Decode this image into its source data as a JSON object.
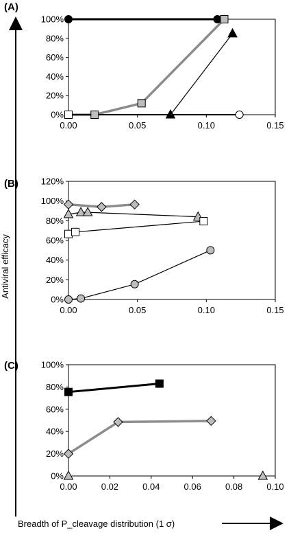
{
  "figure": {
    "shared_ylabel": "Antiviral efficacy",
    "shared_xlabel": "Breadth of P_cleavage distribution (1 σ)"
  },
  "chart_data": [
    {
      "panel_label": "(A)",
      "type": "line",
      "xlim": [
        0,
        0.15
      ],
      "ylim": [
        0,
        1.0
      ],
      "x_ticks": [
        "0.00",
        "0.05",
        "0.10",
        "0.15"
      ],
      "y_ticks": [
        "0%",
        "20%",
        "40%",
        "60%",
        "80%",
        "100%"
      ],
      "grid": false,
      "series": [
        {
          "points": [
            [
              0.0,
              1.0
            ],
            [
              0.108,
              1.0
            ]
          ],
          "marker": "circle",
          "marker_fill": "#000000",
          "line_color": "#000000",
          "line_width": 3
        },
        {
          "points": [
            [
              0.0,
              0.0
            ],
            [
              0.019,
              0.0
            ],
            [
              0.053,
              0.12
            ],
            [
              0.113,
              1.0
            ]
          ],
          "marker": "square",
          "marker_fill": "#bdbdbd",
          "line_color": "#8c8c8c",
          "line_width": 3.5
        },
        {
          "points": [
            [
              0.074,
              0.0
            ],
            [
              0.119,
              0.85
            ]
          ],
          "marker": "triangle",
          "marker_fill": "#000000",
          "line_color": "#000000",
          "line_width": 1.2
        },
        {
          "points": [
            [
              0.0,
              0.0
            ],
            [
              0.124,
              0.0
            ]
          ],
          "marker": "circle",
          "marker_fill": "#ffffff",
          "line_color": "#000000",
          "line_width": 2
        },
        {
          "points": [
            [
              0.0,
              0.0
            ]
          ],
          "marker": "square",
          "marker_fill": "#ffffff",
          "line_color": "#000000",
          "line_width": 0
        }
      ]
    },
    {
      "panel_label": "(B)",
      "type": "line",
      "xlim": [
        0,
        0.15
      ],
      "ylim": [
        0,
        1.2
      ],
      "x_ticks": [
        "0.00",
        "0.05",
        "0.10",
        "0.15"
      ],
      "y_ticks": [
        "0%",
        "20%",
        "40%",
        "60%",
        "80%",
        "100%",
        "120%"
      ],
      "grid": false,
      "series": [
        {
          "points": [
            [
              0.0,
              0.965
            ],
            [
              0.024,
              0.94
            ],
            [
              0.048,
              0.965
            ]
          ],
          "marker": "diamond",
          "marker_fill": "#bdbdbd",
          "line_color": "#8c8c8c",
          "line_width": 3.5
        },
        {
          "points": [
            [
              0.0,
              0.865
            ],
            [
              0.009,
              0.885
            ],
            [
              0.014,
              0.885
            ],
            [
              0.094,
              0.84
            ]
          ],
          "marker": "triangle",
          "marker_fill": "#bdbdbd",
          "line_color": "#000000",
          "line_width": 1.2
        },
        {
          "points": [
            [
              0.0,
              0.665
            ],
            [
              0.005,
              0.685
            ],
            [
              0.098,
              0.795
            ]
          ],
          "marker": "square",
          "marker_fill": "#ffffff",
          "line_color": "#000000",
          "line_width": 1.2
        },
        {
          "points": [
            [
              0.0,
              0.0
            ],
            [
              0.009,
              0.01
            ],
            [
              0.048,
              0.155
            ],
            [
              0.103,
              0.5
            ]
          ],
          "marker": "circle",
          "marker_fill": "#bdbdbd",
          "line_color": "#000000",
          "line_width": 1.2
        }
      ]
    },
    {
      "panel_label": "(C)",
      "type": "line",
      "xlim": [
        0,
        0.1
      ],
      "ylim": [
        0,
        1.0
      ],
      "x_ticks": [
        "0.00",
        "0.02",
        "0.04",
        "0.06",
        "0.08",
        "0.10"
      ],
      "y_ticks": [
        "0%",
        "20%",
        "40%",
        "60%",
        "80%",
        "100%"
      ],
      "grid": false,
      "series": [
        {
          "points": [
            [
              0.0,
              0.755
            ],
            [
              0.044,
              0.83
            ]
          ],
          "marker": "square",
          "marker_fill": "#000000",
          "line_color": "#000000",
          "line_width": 3
        },
        {
          "points": [
            [
              0.0,
              0.2
            ],
            [
              0.024,
              0.485
            ],
            [
              0.069,
              0.495
            ]
          ],
          "marker": "diamond",
          "marker_fill": "#bdbdbd",
          "line_color": "#8c8c8c",
          "line_width": 3.5
        },
        {
          "points": [
            [
              0.0,
              0.0
            ],
            [
              0.094,
              0.0
            ]
          ],
          "marker": "triangle",
          "marker_fill": "#bdbdbd",
          "line_color": "#000000",
          "line_width": 0
        }
      ]
    }
  ]
}
